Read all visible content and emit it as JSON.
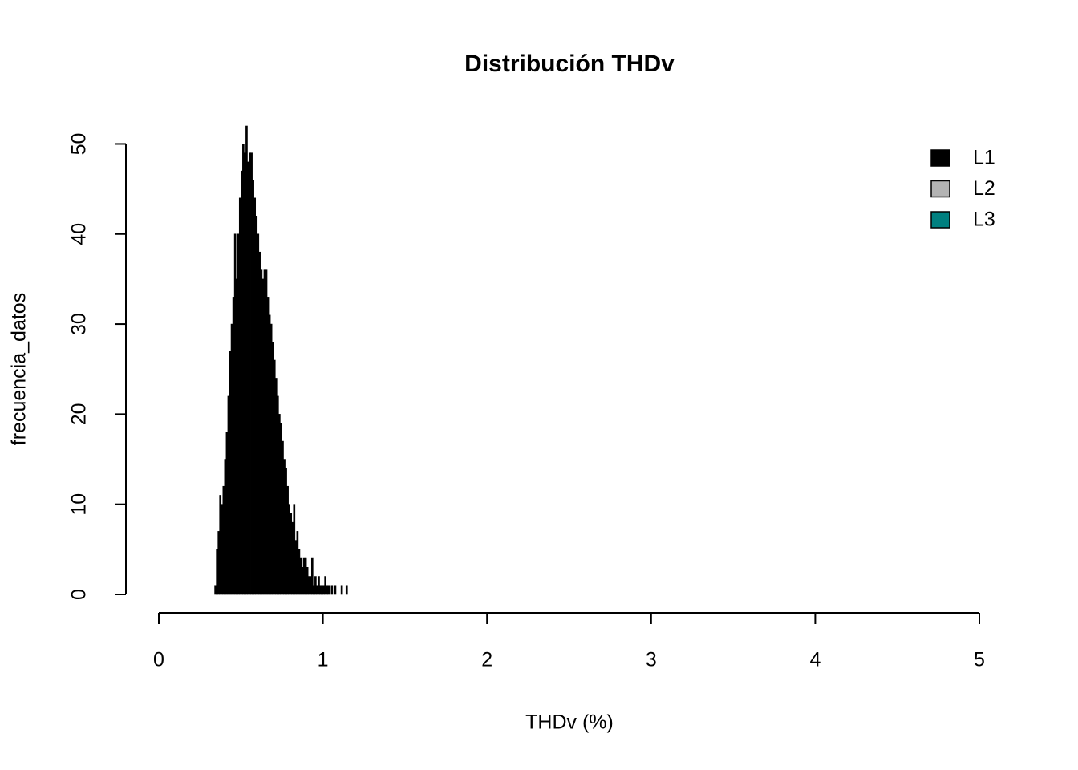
{
  "chart_data": {
    "type": "histogram",
    "title": "Distribución THDv",
    "x_label": "THDv (%)",
    "y_label": "frecuencia_datos",
    "bins": [
      0.34,
      0.35,
      0.36,
      0.37,
      0.38,
      0.39,
      0.4,
      0.41,
      0.42,
      0.43,
      0.44,
      0.45,
      0.46,
      0.47,
      0.48,
      0.49,
      0.5,
      0.51,
      0.52,
      0.53,
      0.54,
      0.55,
      0.56,
      0.57,
      0.58,
      0.59,
      0.6,
      0.61,
      0.62,
      0.63,
      0.64,
      0.65,
      0.66,
      0.67,
      0.68,
      0.69,
      0.7,
      0.71,
      0.72,
      0.73,
      0.74,
      0.75,
      0.76,
      0.77,
      0.78,
      0.79,
      0.8,
      0.81,
      0.82,
      0.83,
      0.84,
      0.85,
      0.86,
      0.87,
      0.88,
      0.89,
      0.9,
      0.91,
      0.92,
      0.93,
      0.94,
      0.95,
      0.96,
      0.97,
      0.98,
      0.99,
      1.0,
      1.01,
      1.02,
      1.03,
      1.04,
      1.05,
      1.06,
      1.07,
      1.08,
      1.09,
      1.1,
      1.11,
      1.12,
      1.13,
      1.14,
      1.15
    ],
    "series": [
      {
        "name": "L1",
        "color": "#000000",
        "values": [
          1,
          5,
          7,
          11,
          10,
          12,
          15,
          18,
          22,
          27,
          30,
          33,
          40,
          35,
          40,
          44,
          47,
          50,
          49,
          52,
          48,
          49,
          49,
          46,
          44,
          42,
          40,
          38,
          36,
          35,
          36,
          36,
          33,
          31,
          30,
          28,
          26,
          24,
          22,
          20,
          19,
          17,
          15,
          14,
          12,
          10,
          9,
          8,
          10,
          6,
          7,
          5,
          4,
          3,
          4,
          4,
          3,
          2,
          2,
          4,
          1,
          2,
          1,
          2,
          1,
          1,
          1,
          2,
          1,
          1,
          0,
          1,
          0,
          1,
          0,
          0,
          0,
          1,
          0,
          0,
          1
        ]
      },
      {
        "name": "L2",
        "color": "#b3b3b3"
      },
      {
        "name": "L3",
        "color": "#008080"
      }
    ],
    "xlim": [
      0,
      5
    ],
    "xticks": [
      0,
      1,
      2,
      3,
      4,
      5
    ],
    "ylim": [
      0,
      52
    ],
    "yticks": [
      0,
      10,
      20,
      30,
      40,
      50
    ],
    "legend_position": "top-right"
  }
}
